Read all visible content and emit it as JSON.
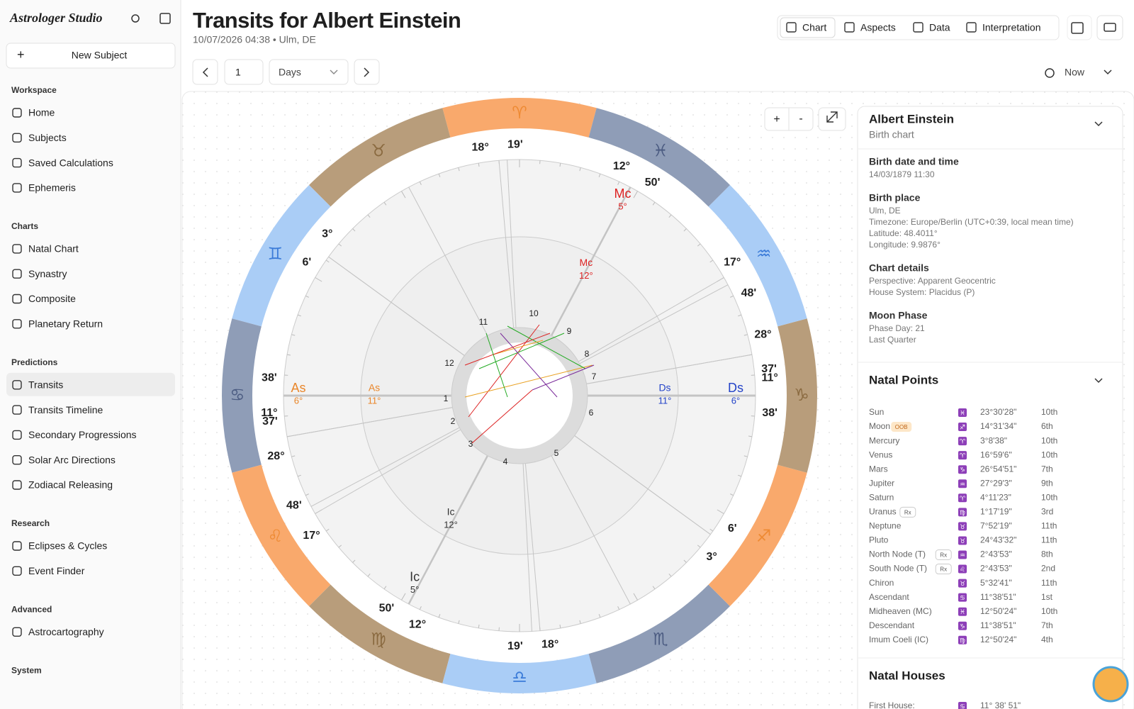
{
  "sidebar": {
    "brand": "Astrologer Studio",
    "new_subject": "New Subject",
    "sections": [
      {
        "title": "Workspace",
        "items": [
          "Home",
          "Subjects",
          "Saved Calculations",
          "Ephemeris"
        ]
      },
      {
        "title": "Charts",
        "items": [
          "Natal Chart",
          "Synastry",
          "Composite",
          "Planetary Return"
        ]
      },
      {
        "title": "Predictions",
        "items": [
          "Transits",
          "Transits Timeline",
          "Secondary Progressions",
          "Solar Arc Directions",
          "Zodiacal Releasing"
        ]
      },
      {
        "title": "Research",
        "items": [
          "Eclipses & Cycles",
          "Event Finder"
        ]
      },
      {
        "title": "Advanced",
        "items": [
          "Astrocartography"
        ]
      },
      {
        "title": "System",
        "items": []
      }
    ]
  },
  "header": {
    "title": "Transits for Albert Einstein",
    "subtitle": "10/07/2026 04:38 • Ulm, DE"
  },
  "tabs": [
    "Chart",
    "Aspects",
    "Data",
    "Interpretation"
  ],
  "toolbar": {
    "step": "1",
    "unit": "Days",
    "now": "Now"
  },
  "chart": {
    "zoom_in": "+",
    "zoom_out": "-",
    "signs": [
      "♈",
      "♉",
      "♊",
      "♋",
      "♌",
      "♍",
      "♎",
      "♏",
      "♐",
      "♑",
      "♒",
      "♓"
    ],
    "house_numbers": [
      "1",
      "2",
      "3",
      "4",
      "5",
      "6",
      "7",
      "8",
      "9",
      "10",
      "11",
      "12"
    ],
    "outer_cusps": [
      [
        "18°",
        "19'"
      ],
      [
        "12°",
        "50'"
      ],
      [
        "17°",
        "48'"
      ],
      [
        "28°",
        "37'"
      ],
      [
        "11°",
        "38'"
      ],
      [
        "6'",
        "3°"
      ],
      [
        "18°",
        "19'"
      ],
      [
        "12°",
        "50'"
      ],
      [
        "17°",
        "48'"
      ],
      [
        "28°",
        "37'"
      ],
      [
        "11°",
        "38'"
      ],
      [
        "6'",
        "3°"
      ]
    ],
    "angles": [
      {
        "label": "As",
        "degree": "6°"
      },
      {
        "label": "Mc",
        "degree": "5°"
      },
      {
        "label": "Ds",
        "degree": "6°"
      },
      {
        "label": "Ic",
        "degree": "5°"
      },
      {
        "label": "As",
        "degree": "11°"
      },
      {
        "label": "Mc",
        "degree": "12°"
      },
      {
        "label": "Ds",
        "degree": "11°"
      },
      {
        "label": "Ic",
        "degree": "12°"
      }
    ]
  },
  "panel": {
    "name": "Albert Einstein",
    "subtitle": "Birth chart",
    "sections": [
      {
        "title": "Birth date and time",
        "lines": [
          "14/03/1879 11:30"
        ]
      },
      {
        "title": "Birth place",
        "lines": [
          "Ulm, DE",
          "Timezone: Europe/Berlin (UTC+0:39, local mean time)",
          "Latitude: 48.4011°",
          "Longitude: 9.9876°"
        ]
      },
      {
        "title": "Chart details",
        "lines": [
          "Perspective: Apparent Geocentric",
          "House System: Placidus (P)"
        ]
      },
      {
        "title": "Moon Phase",
        "lines": [
          "Phase Day: 21",
          "Last Quarter"
        ]
      }
    ],
    "points_title": "Natal Points",
    "points": [
      {
        "name": "Sun",
        "sign": "♓",
        "position": "23°30'28\"",
        "house": "10th"
      },
      {
        "name": "Moon",
        "badge": "OOB",
        "sign": "♐",
        "position": "14°31'34\"",
        "house": "6th"
      },
      {
        "name": "Mercury",
        "sign": "♈",
        "position": "3°8'38\"",
        "house": "10th"
      },
      {
        "name": "Venus",
        "sign": "♈",
        "position": "16°59'6\"",
        "house": "10th"
      },
      {
        "name": "Mars",
        "sign": "♑",
        "position": "26°54'51\"",
        "house": "7th"
      },
      {
        "name": "Jupiter",
        "sign": "♒",
        "position": "27°29'3\"",
        "house": "9th"
      },
      {
        "name": "Saturn",
        "sign": "♈",
        "position": "4°11'23\"",
        "house": "10th"
      },
      {
        "name": "Uranus",
        "badge": "Rx",
        "sign": "♍",
        "position": "1°17'19\"",
        "house": "3rd"
      },
      {
        "name": "Neptune",
        "sign": "♉",
        "position": "7°52'19\"",
        "house": "11th"
      },
      {
        "name": "Pluto",
        "sign": "♉",
        "position": "24°43'32\"",
        "house": "11th"
      },
      {
        "name": "North Node (T)",
        "badge": "Rx",
        "sign": "♒",
        "position": "2°43'53\"",
        "house": "8th"
      },
      {
        "name": "South Node (T)",
        "badge": "Rx",
        "sign": "♌",
        "position": "2°43'53\"",
        "house": "2nd"
      },
      {
        "name": "Chiron",
        "sign": "♉",
        "position": "5°32'41\"",
        "house": "11th"
      },
      {
        "name": "Ascendant",
        "sign": "♋",
        "position": "11°38'51\"",
        "house": "1st"
      },
      {
        "name": "Midheaven (MC)",
        "sign": "♓",
        "position": "12°50'24\"",
        "house": "10th"
      },
      {
        "name": "Descendant",
        "sign": "♑",
        "position": "11°38'51\"",
        "house": "7th"
      },
      {
        "name": "Imum Coeli (IC)",
        "sign": "♍",
        "position": "12°50'24\"",
        "house": "4th"
      }
    ],
    "houses_title": "Natal Houses",
    "houses": [
      {
        "name": "First House:",
        "sign": "♋",
        "position": "11° 38' 51\""
      }
    ]
  }
}
